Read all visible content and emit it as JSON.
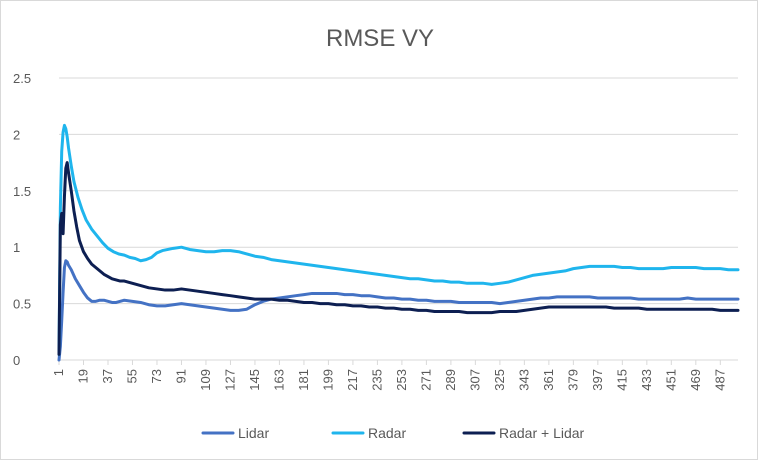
{
  "chart_data": {
    "type": "line",
    "title": "RMSE VY",
    "xlabel": "",
    "ylabel": "",
    "ylim": [
      0,
      2.5
    ],
    "y_ticks": [
      "0",
      "0.5",
      "1",
      "1.5",
      "2",
      "2.5"
    ],
    "x_ticks": [
      "1",
      "19",
      "37",
      "55",
      "73",
      "91",
      "109",
      "127",
      "145",
      "163",
      "181",
      "199",
      "217",
      "235",
      "253",
      "271",
      "289",
      "307",
      "325",
      "343",
      "361",
      "379",
      "397",
      "415",
      "433",
      "451",
      "469",
      "487"
    ],
    "x_range": [
      1,
      500
    ],
    "grid": "horizontal",
    "legend_position": "bottom",
    "series": [
      {
        "name": "Lidar",
        "color": "#4472c4",
        "points": [
          [
            1,
            0
          ],
          [
            2,
            0.12
          ],
          [
            3,
            0.35
          ],
          [
            4,
            0.6
          ],
          [
            5,
            0.82
          ],
          [
            6,
            0.88
          ],
          [
            7,
            0.87
          ],
          [
            8,
            0.84
          ],
          [
            10,
            0.8
          ],
          [
            13,
            0.72
          ],
          [
            16,
            0.66
          ],
          [
            19,
            0.6
          ],
          [
            22,
            0.55
          ],
          [
            25,
            0.52
          ],
          [
            28,
            0.52
          ],
          [
            31,
            0.53
          ],
          [
            34,
            0.53
          ],
          [
            37,
            0.52
          ],
          [
            40,
            0.51
          ],
          [
            43,
            0.51
          ],
          [
            46,
            0.52
          ],
          [
            49,
            0.53
          ],
          [
            55,
            0.52
          ],
          [
            61,
            0.51
          ],
          [
            67,
            0.49
          ],
          [
            73,
            0.48
          ],
          [
            79,
            0.48
          ],
          [
            85,
            0.49
          ],
          [
            91,
            0.5
          ],
          [
            97,
            0.49
          ],
          [
            103,
            0.48
          ],
          [
            109,
            0.47
          ],
          [
            115,
            0.46
          ],
          [
            121,
            0.45
          ],
          [
            127,
            0.44
          ],
          [
            133,
            0.44
          ],
          [
            139,
            0.45
          ],
          [
            145,
            0.49
          ],
          [
            151,
            0.52
          ],
          [
            157,
            0.54
          ],
          [
            163,
            0.55
          ],
          [
            169,
            0.56
          ],
          [
            175,
            0.57
          ],
          [
            181,
            0.58
          ],
          [
            187,
            0.59
          ],
          [
            193,
            0.59
          ],
          [
            199,
            0.59
          ],
          [
            205,
            0.59
          ],
          [
            211,
            0.58
          ],
          [
            217,
            0.58
          ],
          [
            223,
            0.57
          ],
          [
            229,
            0.57
          ],
          [
            235,
            0.56
          ],
          [
            241,
            0.55
          ],
          [
            247,
            0.55
          ],
          [
            253,
            0.54
          ],
          [
            259,
            0.54
          ],
          [
            265,
            0.53
          ],
          [
            271,
            0.53
          ],
          [
            277,
            0.52
          ],
          [
            283,
            0.52
          ],
          [
            289,
            0.52
          ],
          [
            295,
            0.51
          ],
          [
            301,
            0.51
          ],
          [
            307,
            0.51
          ],
          [
            313,
            0.51
          ],
          [
            319,
            0.51
          ],
          [
            325,
            0.5
          ],
          [
            331,
            0.51
          ],
          [
            337,
            0.52
          ],
          [
            343,
            0.53
          ],
          [
            349,
            0.54
          ],
          [
            355,
            0.55
          ],
          [
            361,
            0.55
          ],
          [
            367,
            0.56
          ],
          [
            373,
            0.56
          ],
          [
            379,
            0.56
          ],
          [
            385,
            0.56
          ],
          [
            391,
            0.56
          ],
          [
            397,
            0.55
          ],
          [
            403,
            0.55
          ],
          [
            409,
            0.55
          ],
          [
            415,
            0.55
          ],
          [
            421,
            0.55
          ],
          [
            427,
            0.54
          ],
          [
            433,
            0.54
          ],
          [
            439,
            0.54
          ],
          [
            445,
            0.54
          ],
          [
            451,
            0.54
          ],
          [
            457,
            0.54
          ],
          [
            463,
            0.55
          ],
          [
            469,
            0.54
          ],
          [
            475,
            0.54
          ],
          [
            481,
            0.54
          ],
          [
            487,
            0.54
          ],
          [
            493,
            0.54
          ],
          [
            500,
            0.54
          ]
        ]
      },
      {
        "name": "Radar",
        "color": "#1fb5ed",
        "points": [
          [
            1,
            0.05
          ],
          [
            2,
            1.35
          ],
          [
            3,
            1.85
          ],
          [
            4,
            2.02
          ],
          [
            5,
            2.08
          ],
          [
            6,
            2.05
          ],
          [
            7,
            1.98
          ],
          [
            8,
            1.88
          ],
          [
            10,
            1.72
          ],
          [
            12,
            1.58
          ],
          [
            15,
            1.44
          ],
          [
            18,
            1.33
          ],
          [
            21,
            1.24
          ],
          [
            25,
            1.16
          ],
          [
            29,
            1.1
          ],
          [
            33,
            1.04
          ],
          [
            37,
            0.99
          ],
          [
            41,
            0.96
          ],
          [
            45,
            0.94
          ],
          [
            49,
            0.93
          ],
          [
            53,
            0.91
          ],
          [
            57,
            0.9
          ],
          [
            61,
            0.88
          ],
          [
            65,
            0.89
          ],
          [
            69,
            0.91
          ],
          [
            73,
            0.95
          ],
          [
            77,
            0.97
          ],
          [
            81,
            0.98
          ],
          [
            85,
            0.99
          ],
          [
            91,
            1.0
          ],
          [
            97,
            0.98
          ],
          [
            103,
            0.97
          ],
          [
            109,
            0.96
          ],
          [
            115,
            0.96
          ],
          [
            121,
            0.97
          ],
          [
            127,
            0.97
          ],
          [
            133,
            0.96
          ],
          [
            139,
            0.94
          ],
          [
            145,
            0.92
          ],
          [
            151,
            0.91
          ],
          [
            157,
            0.89
          ],
          [
            163,
            0.88
          ],
          [
            169,
            0.87
          ],
          [
            175,
            0.86
          ],
          [
            181,
            0.85
          ],
          [
            187,
            0.84
          ],
          [
            193,
            0.83
          ],
          [
            199,
            0.82
          ],
          [
            205,
            0.81
          ],
          [
            211,
            0.8
          ],
          [
            217,
            0.79
          ],
          [
            223,
            0.78
          ],
          [
            229,
            0.77
          ],
          [
            235,
            0.76
          ],
          [
            241,
            0.75
          ],
          [
            247,
            0.74
          ],
          [
            253,
            0.73
          ],
          [
            259,
            0.72
          ],
          [
            265,
            0.72
          ],
          [
            271,
            0.71
          ],
          [
            277,
            0.7
          ],
          [
            283,
            0.7
          ],
          [
            289,
            0.69
          ],
          [
            295,
            0.69
          ],
          [
            301,
            0.68
          ],
          [
            307,
            0.68
          ],
          [
            313,
            0.68
          ],
          [
            319,
            0.67
          ],
          [
            325,
            0.68
          ],
          [
            331,
            0.69
          ],
          [
            337,
            0.71
          ],
          [
            343,
            0.73
          ],
          [
            349,
            0.75
          ],
          [
            355,
            0.76
          ],
          [
            361,
            0.77
          ],
          [
            367,
            0.78
          ],
          [
            373,
            0.79
          ],
          [
            379,
            0.81
          ],
          [
            385,
            0.82
          ],
          [
            391,
            0.83
          ],
          [
            397,
            0.83
          ],
          [
            403,
            0.83
          ],
          [
            409,
            0.83
          ],
          [
            415,
            0.82
          ],
          [
            421,
            0.82
          ],
          [
            427,
            0.81
          ],
          [
            433,
            0.81
          ],
          [
            439,
            0.81
          ],
          [
            445,
            0.81
          ],
          [
            451,
            0.82
          ],
          [
            457,
            0.82
          ],
          [
            463,
            0.82
          ],
          [
            469,
            0.82
          ],
          [
            475,
            0.81
          ],
          [
            481,
            0.81
          ],
          [
            487,
            0.81
          ],
          [
            493,
            0.8
          ],
          [
            500,
            0.8
          ]
        ]
      },
      {
        "name": "Radar + Lidar",
        "color": "#0d1f52",
        "points": [
          [
            1,
            0.05
          ],
          [
            2,
            1.2
          ],
          [
            3,
            1.3
          ],
          [
            4,
            1.12
          ],
          [
            5,
            1.45
          ],
          [
            6,
            1.7
          ],
          [
            7,
            1.75
          ],
          [
            8,
            1.66
          ],
          [
            10,
            1.5
          ],
          [
            12,
            1.32
          ],
          [
            14,
            1.18
          ],
          [
            16,
            1.06
          ],
          [
            19,
            0.96
          ],
          [
            22,
            0.9
          ],
          [
            25,
            0.85
          ],
          [
            28,
            0.82
          ],
          [
            31,
            0.79
          ],
          [
            34,
            0.76
          ],
          [
            37,
            0.74
          ],
          [
            40,
            0.72
          ],
          [
            43,
            0.71
          ],
          [
            46,
            0.7
          ],
          [
            49,
            0.7
          ],
          [
            55,
            0.68
          ],
          [
            61,
            0.66
          ],
          [
            67,
            0.64
          ],
          [
            73,
            0.63
          ],
          [
            79,
            0.62
          ],
          [
            85,
            0.62
          ],
          [
            91,
            0.63
          ],
          [
            97,
            0.62
          ],
          [
            103,
            0.61
          ],
          [
            109,
            0.6
          ],
          [
            115,
            0.59
          ],
          [
            121,
            0.58
          ],
          [
            127,
            0.57
          ],
          [
            133,
            0.56
          ],
          [
            139,
            0.55
          ],
          [
            145,
            0.54
          ],
          [
            151,
            0.54
          ],
          [
            157,
            0.54
          ],
          [
            163,
            0.53
          ],
          [
            169,
            0.53
          ],
          [
            175,
            0.52
          ],
          [
            181,
            0.51
          ],
          [
            187,
            0.51
          ],
          [
            193,
            0.5
          ],
          [
            199,
            0.5
          ],
          [
            205,
            0.49
          ],
          [
            211,
            0.49
          ],
          [
            217,
            0.48
          ],
          [
            223,
            0.48
          ],
          [
            229,
            0.47
          ],
          [
            235,
            0.47
          ],
          [
            241,
            0.46
          ],
          [
            247,
            0.46
          ],
          [
            253,
            0.45
          ],
          [
            259,
            0.45
          ],
          [
            265,
            0.44
          ],
          [
            271,
            0.44
          ],
          [
            277,
            0.43
          ],
          [
            283,
            0.43
          ],
          [
            289,
            0.43
          ],
          [
            295,
            0.43
          ],
          [
            301,
            0.42
          ],
          [
            307,
            0.42
          ],
          [
            313,
            0.42
          ],
          [
            319,
            0.42
          ],
          [
            325,
            0.43
          ],
          [
            331,
            0.43
          ],
          [
            337,
            0.43
          ],
          [
            343,
            0.44
          ],
          [
            349,
            0.45
          ],
          [
            355,
            0.46
          ],
          [
            361,
            0.47
          ],
          [
            367,
            0.47
          ],
          [
            373,
            0.47
          ],
          [
            379,
            0.47
          ],
          [
            385,
            0.47
          ],
          [
            391,
            0.47
          ],
          [
            397,
            0.47
          ],
          [
            403,
            0.47
          ],
          [
            409,
            0.46
          ],
          [
            415,
            0.46
          ],
          [
            421,
            0.46
          ],
          [
            427,
            0.46
          ],
          [
            433,
            0.45
          ],
          [
            439,
            0.45
          ],
          [
            445,
            0.45
          ],
          [
            451,
            0.45
          ],
          [
            457,
            0.45
          ],
          [
            463,
            0.45
          ],
          [
            469,
            0.45
          ],
          [
            475,
            0.45
          ],
          [
            481,
            0.45
          ],
          [
            487,
            0.44
          ],
          [
            493,
            0.44
          ],
          [
            500,
            0.44
          ]
        ]
      }
    ]
  }
}
